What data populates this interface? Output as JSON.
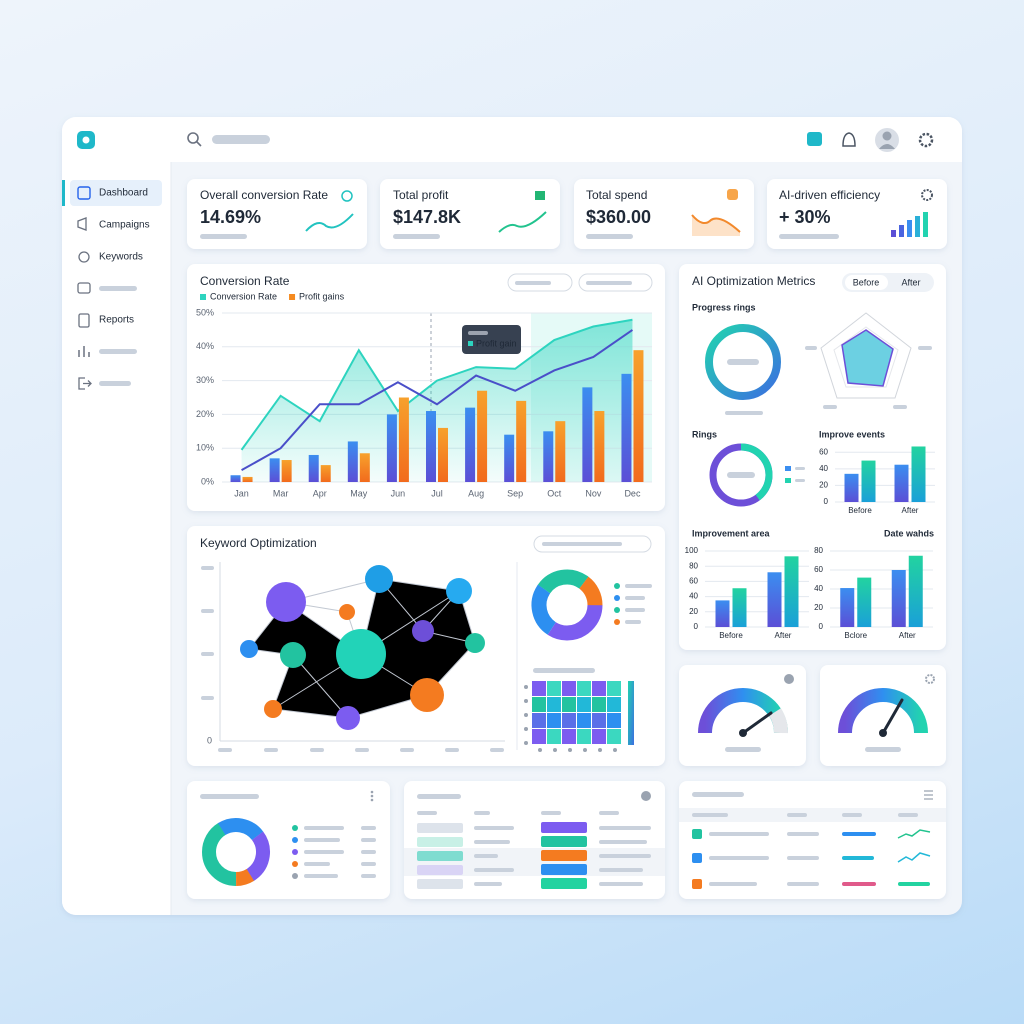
{
  "sidebar": {
    "nav": [
      "Dashboard",
      "Campaigns",
      "Keywords",
      "Reports"
    ]
  },
  "kpis": [
    {
      "title": "Overall conversion Rate",
      "value": "14.69%"
    },
    {
      "title": "Total profit",
      "value": "$147.8K"
    },
    {
      "title": "Total spend",
      "value": "$360.00"
    },
    {
      "title": "AI-driven efficiency",
      "value": "+ 30%"
    }
  ],
  "conversion_chart": {
    "type": "bar",
    "title": "Conversion Rate",
    "tooltip": "Profit gain",
    "categories": [
      "Jan",
      "Mar",
      "Apr",
      "May",
      "Jun",
      "Jul",
      "Aug",
      "Sep",
      "Oct",
      "Nov",
      "Dec"
    ],
    "series": [
      {
        "name": "Conversion Rate",
        "type": "area",
        "color": "#2dd4bf",
        "values": [
          9.5,
          25.5,
          18,
          39,
          21,
          30,
          34,
          33.5,
          42,
          46,
          48
        ]
      },
      {
        "name": "Profit gains",
        "type": "bar",
        "color": "#f58a1f",
        "values": [
          1.5,
          6.5,
          5,
          8.5,
          25,
          16,
          27,
          24,
          18,
          21,
          39
        ]
      },
      {
        "type": "bar",
        "color": "#3b6fe0",
        "values": [
          2,
          7,
          8,
          12,
          20,
          21,
          22,
          14,
          15,
          28,
          32
        ]
      },
      {
        "type": "line",
        "color": "#4a4fc9",
        "values": [
          3.5,
          10,
          23,
          23,
          29.5,
          23,
          31.5,
          27,
          33,
          37,
          45
        ]
      }
    ],
    "ylim": [
      0,
      50
    ],
    "yticks": [
      {
        "value": 0,
        "label": "0%"
      },
      {
        "value": 10,
        "label": "10%"
      },
      {
        "value": 20,
        "label": "20%"
      },
      {
        "value": 30,
        "label": "30%"
      },
      {
        "value": 40,
        "label": "40%"
      },
      {
        "value": 50,
        "label": "50%"
      }
    ],
    "grid": true
  },
  "keyword": {
    "title": "Keyword Optimization",
    "yticks": [
      0
    ]
  },
  "ai_metrics": {
    "title": "AI Optimization Metrics",
    "toggle": [
      "Before",
      "After"
    ],
    "labels": [
      "Progress rings",
      "Rings"
    ],
    "charts": [
      {
        "type": "bar",
        "title": "Improve events",
        "categories": [
          "Before",
          "After"
        ],
        "series": [
          {
            "color": "#3b6fe0",
            "values": [
              34,
              45
            ]
          },
          {
            "color": "#22d3b0",
            "values": [
              50,
              67
            ]
          }
        ],
        "ylim": [
          0,
          70
        ],
        "yticks": [
          0,
          20,
          40,
          60
        ]
      },
      {
        "type": "bar",
        "title": "Improvement area",
        "categories": [
          "Before",
          "After"
        ],
        "series": [
          {
            "color": "#3b6fe0",
            "values": [
              35,
              72
            ]
          },
          {
            "color": "#22d3b0",
            "values": [
              51,
              93
            ]
          }
        ],
        "ylim": [
          0,
          100
        ],
        "yticks": [
          0,
          20,
          40,
          60,
          80,
          100
        ]
      },
      {
        "type": "bar",
        "title": "Date wahds",
        "categories": [
          "Bclore",
          "After"
        ],
        "series": [
          {
            "color": "#3b6fe0",
            "values": [
              41,
              60
            ]
          },
          {
            "color": "#22d3b0",
            "values": [
              52,
              75
            ]
          }
        ],
        "ylim": [
          0,
          80
        ],
        "yticks": [
          0,
          20,
          40,
          60,
          80
        ]
      }
    ]
  }
}
